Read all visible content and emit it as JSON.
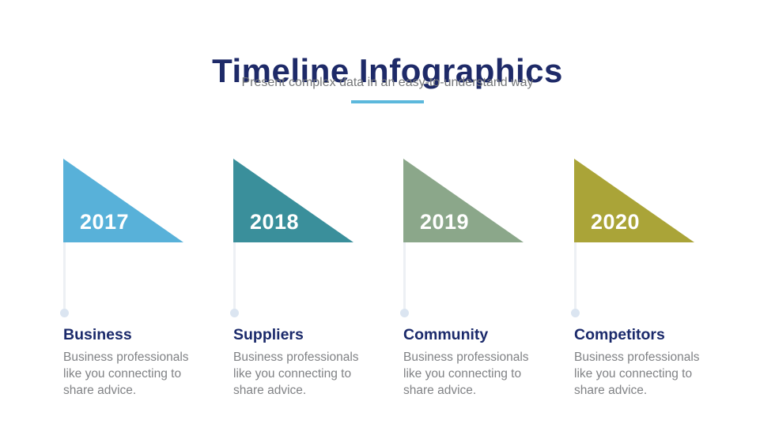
{
  "header": {
    "title": "Timeline Infographics",
    "subtitle": "Present complex data in an easy-to-understand way",
    "accent_color": "#5cb8dc"
  },
  "theme": {
    "title_color": "#1e2a68",
    "heading_color": "#1b2a6b",
    "body_text_color": "#808285"
  },
  "milestones": [
    {
      "year": "2017",
      "flag_color": "#58b1d9",
      "title": "Business",
      "description": "Business professionals like you connecting to share advice."
    },
    {
      "year": "2018",
      "flag_color": "#3a8f9b",
      "title": "Suppliers",
      "description": "Business professionals like you connecting to share advice."
    },
    {
      "year": "2019",
      "flag_color": "#8ba78a",
      "title": "Community",
      "description": "Business professionals like you connecting to share advice."
    },
    {
      "year": "2020",
      "flag_color": "#aaa438",
      "title": "Competitors",
      "description": "Business professionals like you connecting to share advice."
    }
  ]
}
